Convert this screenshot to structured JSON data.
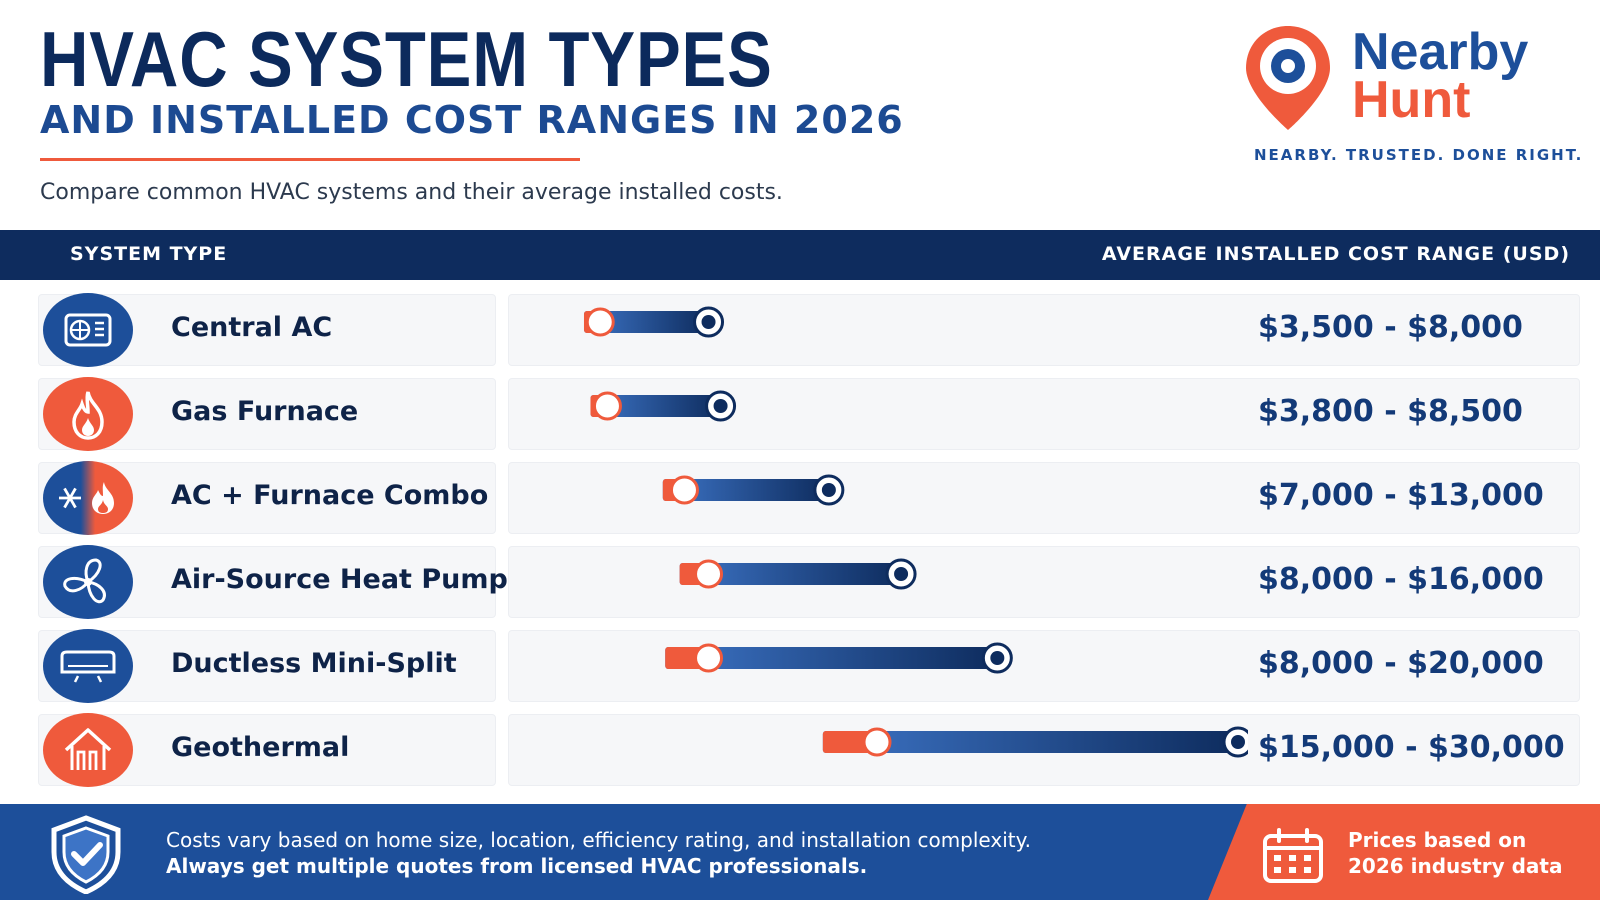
{
  "header": {
    "title": "HVAC SYSTEM TYPES",
    "subtitle": "AND INSTALLED COST RANGES IN 2026",
    "lede": "Compare common HVAC systems and their average installed costs."
  },
  "logo": {
    "brand_line1": "Nearby",
    "brand_line2": "Hunt",
    "tagline": "NEARBY. TRUSTED. DONE RIGHT."
  },
  "table_header": {
    "left": "SYSTEM TYPE",
    "right": "AVERAGE INSTALLED COST RANGE (USD)"
  },
  "colors": {
    "navy": "#0e2c5e",
    "blue": "#1d4f9a",
    "orange": "#ef5a3c"
  },
  "chart_data": {
    "type": "bar",
    "categories": [
      "Central AC",
      "Gas Furnace",
      "AC + Furnace Combo",
      "Air-Source Heat Pump",
      "Ductless Mini-Split",
      "Geothermal"
    ],
    "icons": [
      "air-conditioner-icon",
      "flame-icon",
      "snowflake-flame-icon",
      "fan-icon",
      "mini-split-icon",
      "geothermal-house-icon"
    ],
    "icon_colors": [
      "#1d4f9a",
      "#ef5a3c",
      "split",
      "#1d4f9a",
      "#1d4f9a",
      "#ef5a3c"
    ],
    "low": [
      3500,
      3800,
      7000,
      8000,
      8000,
      15000
    ],
    "high": [
      8000,
      8500,
      13000,
      16000,
      20000,
      30000
    ],
    "labels": [
      "$3,500 - $8,000",
      "$3,800 - $8,500",
      "$7,000 - $13,000",
      "$8,000 - $16,000",
      "$8,000 - $20,000",
      "$15,000 - $30,000"
    ],
    "xlim": [
      0,
      30000
    ]
  },
  "footer": {
    "note_line1": "Costs vary based on home size, location, efficiency rating, and installation complexity.",
    "note_line2": "Always get multiple quotes from licensed HVAC professionals.",
    "source_line1": "Prices based on",
    "source_line2": "2026 industry data"
  }
}
